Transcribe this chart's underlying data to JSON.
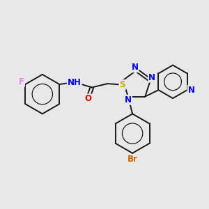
{
  "bg_color": "#e8e8e8",
  "bond_color": "#1a1a1a",
  "bond_lw": 1.4,
  "atom_colors": {
    "F": "#ee82ee",
    "N": "#0000ee",
    "O": "#ee0000",
    "S": "#ccaa00",
    "Br": "#cc6600",
    "C": "#1a1a1a"
  },
  "fs": 8.5
}
